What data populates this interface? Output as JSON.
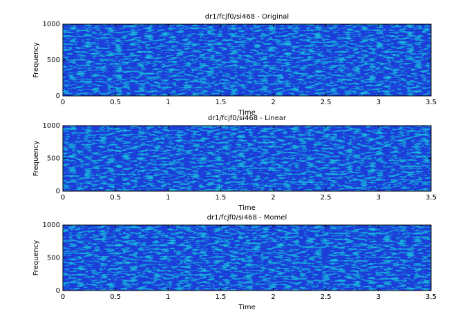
{
  "chart_data": [
    {
      "type": "spectrogram",
      "title": "dr1/fcjf0/si468 - Original",
      "xlabel": "Time",
      "ylabel": "Frequency",
      "xlim": [
        0,
        3.5
      ],
      "xticks": [
        0,
        0.5,
        1,
        1.5,
        2,
        2.5,
        3,
        3.5
      ],
      "ylim": [
        0,
        1000
      ],
      "yticks": [
        0,
        500,
        1000
      ]
    },
    {
      "type": "spectrogram",
      "title": "dr1/fcjf0/si468 - Linear",
      "xlabel": "Time",
      "ylabel": "Frequency",
      "xlim": [
        0,
        3.5
      ],
      "xticks": [
        0,
        0.5,
        1,
        1.5,
        2,
        2.5,
        3,
        3.5
      ],
      "ylim": [
        0,
        1000
      ],
      "yticks": [
        0,
        500,
        1000
      ]
    },
    {
      "type": "spectrogram",
      "title": "dr1/fcjf0/si468 - Momel",
      "xlabel": "Time",
      "ylabel": "Frequency",
      "xlim": [
        0,
        3.5
      ],
      "xticks": [
        0,
        0.5,
        1,
        1.5,
        2,
        2.5,
        3,
        3.5
      ],
      "ylim": [
        0,
        1000
      ],
      "yticks": [
        0,
        500,
        1000
      ]
    }
  ]
}
